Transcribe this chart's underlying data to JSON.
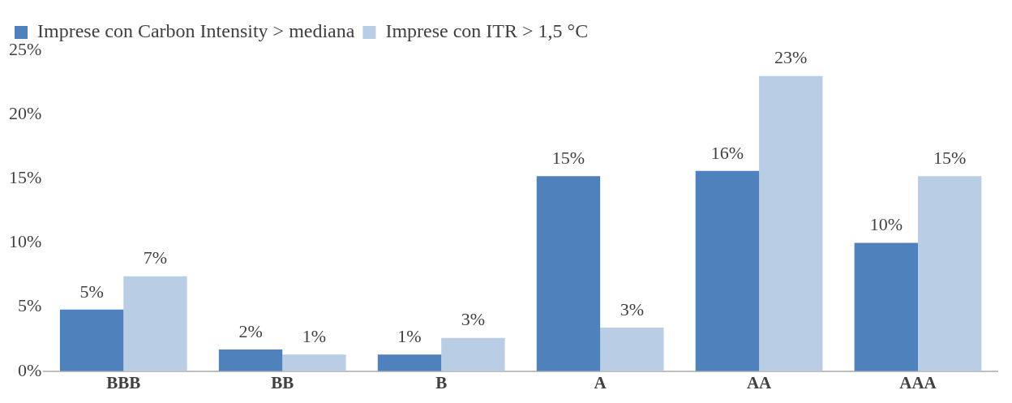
{
  "chart_data": {
    "type": "bar",
    "categories": [
      "BBB",
      "BB",
      "B",
      "A",
      "AA",
      "AAA"
    ],
    "series": [
      {
        "name": "Imprese con Carbon Intensity > mediana",
        "color": "#4f81bd",
        "values": [
          4.8,
          1.7,
          1.3,
          15.2,
          15.6,
          10.0
        ],
        "value_labels": [
          "5%",
          "2%",
          "1%",
          "15%",
          "16%",
          "10%"
        ]
      },
      {
        "name": "Imprese con ITR > 1,5 °C",
        "color": "#b9cde5",
        "values": [
          7.4,
          1.3,
          2.6,
          3.4,
          23.0,
          15.2
        ],
        "value_labels": [
          "7%",
          "1%",
          "3%",
          "3%",
          "23%",
          "15%"
        ]
      }
    ],
    "ylim": [
      0,
      25
    ],
    "yticks": [
      {
        "value": 0,
        "label": "0%"
      },
      {
        "value": 5,
        "label": "5%"
      },
      {
        "value": 10,
        "label": "10%"
      },
      {
        "value": 15,
        "label": "15%"
      },
      {
        "value": 20,
        "label": "20%"
      },
      {
        "value": 25,
        "label": "25%"
      }
    ],
    "grid": false,
    "legend": "top left"
  }
}
